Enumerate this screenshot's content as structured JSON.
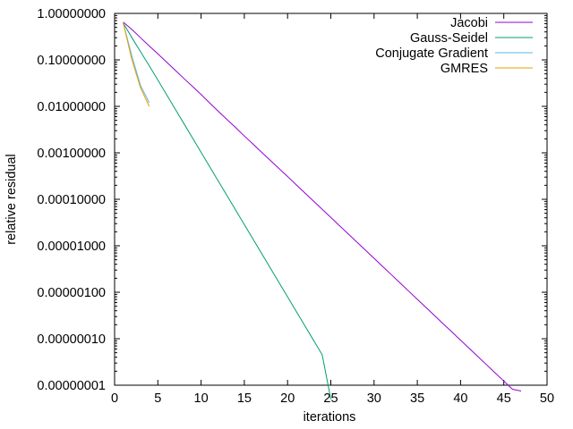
{
  "chart_data": {
    "type": "line",
    "title": "",
    "xlabel": "iterations",
    "ylabel": "relative residual",
    "xlim": [
      0,
      50
    ],
    "ylim": [
      1e-08,
      1
    ],
    "yscale": "log",
    "x_ticks": [
      0,
      5,
      10,
      15,
      20,
      25,
      30,
      35,
      40,
      45,
      50
    ],
    "x_tick_labels": [
      "0",
      "5",
      "10",
      "15",
      "20",
      "25",
      "30",
      "35",
      "40",
      "45",
      "50"
    ],
    "y_ticks": [
      1e-08,
      1e-07,
      1e-06,
      1e-05,
      0.0001,
      0.001,
      0.01,
      0.1,
      1
    ],
    "y_tick_labels": [
      "0.00000001",
      "0.00000010",
      "0.00000100",
      "0.00001000",
      "0.00010000",
      "0.00100000",
      "0.01000000",
      "0.10000000",
      "1.00000000"
    ],
    "grid": false,
    "legend_position": "top-right",
    "series": [
      {
        "name": "Jacobi",
        "color": "#9400d3",
        "x": [
          1,
          2,
          3,
          4,
          5,
          6,
          7,
          8,
          9,
          10,
          11,
          12,
          13,
          14,
          15,
          16,
          17,
          18,
          19,
          20,
          21,
          22,
          23,
          24,
          25,
          26,
          27,
          28,
          29,
          30,
          31,
          32,
          33,
          34,
          35,
          36,
          37,
          38,
          39,
          40,
          41,
          42,
          43,
          44,
          45,
          46,
          47
        ],
        "y": [
          0.65,
          0.45,
          0.3,
          0.2,
          0.135,
          0.09,
          0.06,
          0.04,
          0.027,
          0.018,
          0.0118,
          0.0078,
          0.0052,
          0.0035,
          0.0023,
          0.00155,
          0.00103,
          0.00069,
          0.00046,
          0.00031,
          0.000205,
          0.000137,
          9.15e-05,
          6.1e-05,
          4.07e-05,
          2.71e-05,
          1.81e-05,
          1.21e-05,
          8.05e-06,
          5.37e-06,
          3.58e-06,
          2.39e-06,
          1.59e-06,
          1.06e-06,
          7.07e-07,
          4.71e-07,
          3.14e-07,
          2.09e-07,
          1.4e-07,
          9.31e-08,
          6.21e-08,
          4.14e-08,
          2.76e-08,
          1.84e-08,
          1.23e-08,
          8.2e-09,
          7.5e-09
        ]
      },
      {
        "name": "Gauss-Seidel",
        "color": "#009e73",
        "x": [
          1,
          2,
          3,
          4,
          5,
          6,
          7,
          8,
          9,
          10,
          11,
          12,
          13,
          14,
          15,
          16,
          17,
          18,
          19,
          20,
          21,
          22,
          23,
          24,
          25
        ],
        "y": [
          0.62,
          0.3,
          0.15,
          0.075,
          0.037,
          0.018,
          0.0088,
          0.0043,
          0.0021,
          0.00103,
          0.0005,
          0.000245,
          0.00012,
          5.86e-05,
          2.86e-05,
          1.4e-05,
          6.83e-06,
          3.34e-06,
          1.63e-06,
          7.96e-07,
          3.89e-07,
          1.9e-07,
          9.28e-08,
          4.53e-08,
          5e-09
        ]
      },
      {
        "name": "Conjugate Gradient",
        "color": "#56b4e9",
        "x": [
          1,
          2,
          3,
          4
        ],
        "y": [
          0.62,
          0.12,
          0.028,
          0.012
        ]
      },
      {
        "name": "GMRES",
        "color": "#e69f00",
        "x": [
          1,
          2,
          3,
          4
        ],
        "y": [
          0.62,
          0.1,
          0.025,
          0.01
        ]
      }
    ]
  }
}
